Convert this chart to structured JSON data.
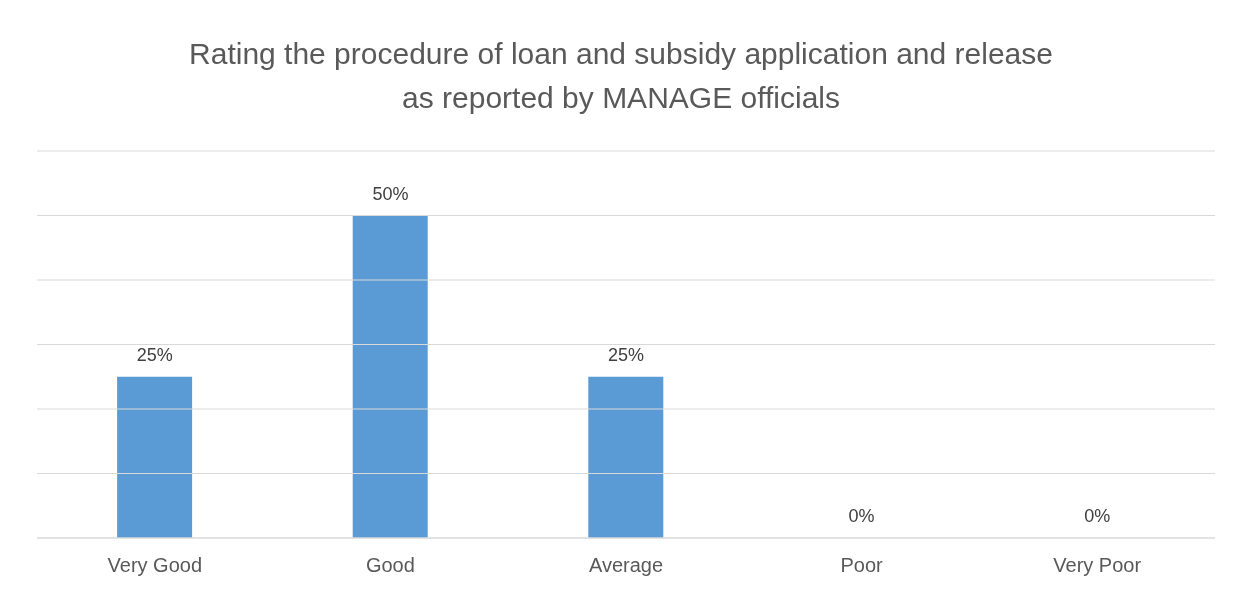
{
  "chart_data": {
    "type": "bar",
    "title": "Rating the procedure of loan and subsidy application and release as reported by MANAGE officials",
    "categories": [
      "Very Good",
      "Good",
      "Average",
      "Poor",
      "Very Poor"
    ],
    "values": [
      25,
      50,
      25,
      0,
      0
    ],
    "color": "#5b9bd5",
    "value_labels": [
      "25%",
      "50%",
      "25%",
      "0%",
      "0%"
    ],
    "ylim": [
      0,
      60
    ],
    "yticks": [
      {
        "value": 0,
        "label": null
      },
      {
        "value": 10,
        "label": null
      },
      {
        "value": 20,
        "label": null
      },
      {
        "value": 30,
        "label": null
      },
      {
        "value": 40,
        "label": null
      },
      {
        "value": 50,
        "label": null
      },
      {
        "value": 60,
        "label": null
      }
    ],
    "grid": "y",
    "tick_labels": "x"
  }
}
